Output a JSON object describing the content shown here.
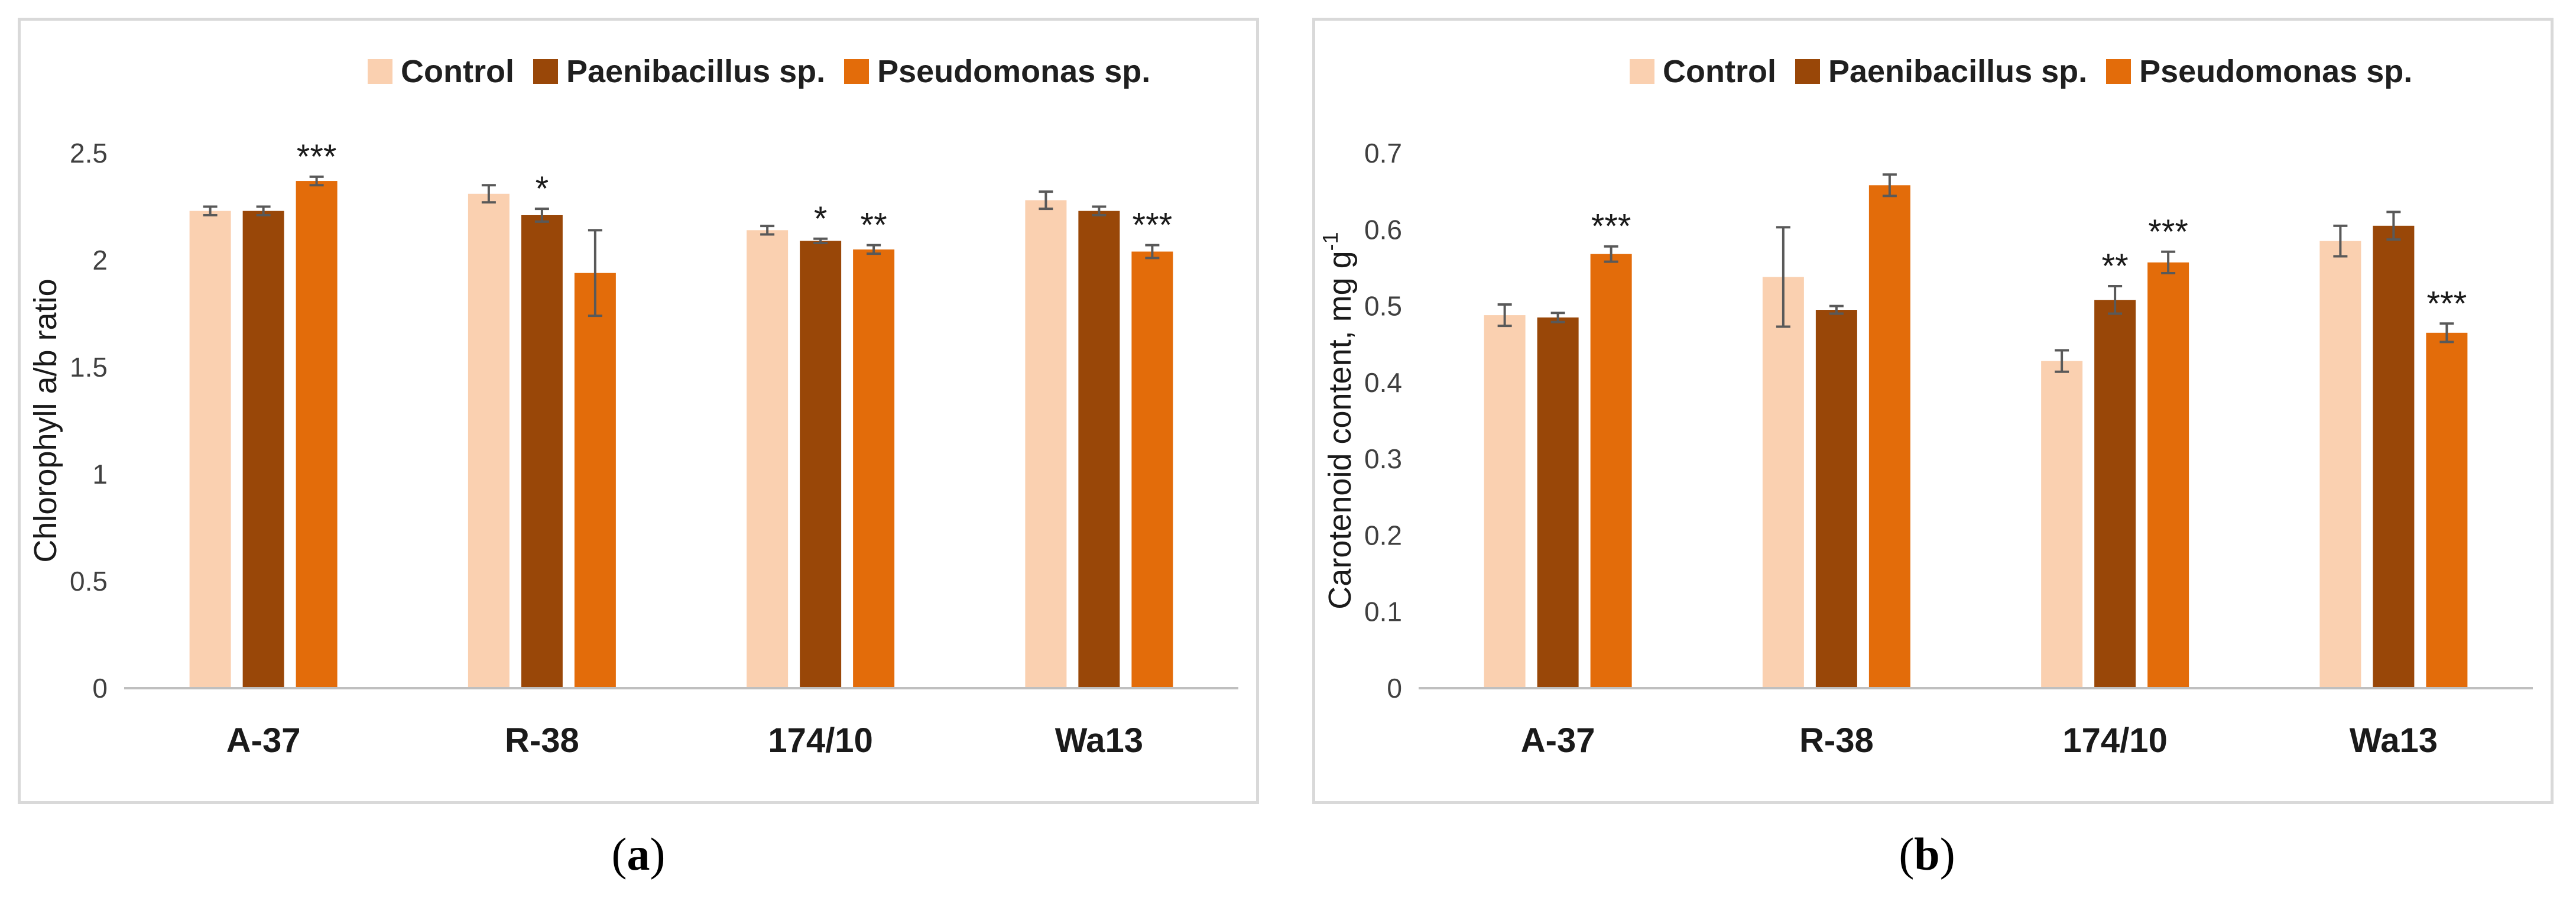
{
  "colors": {
    "control": "#fad0b0",
    "paenibacillus": "#994708",
    "pseudomonas": "#e36c0a",
    "axis": "#bfbfbf",
    "text": "#000000",
    "error": "#595959"
  },
  "chart_data": [
    {
      "type": "bar",
      "panel_label": "a",
      "categories": [
        "A-37",
        "R-38",
        "174/10",
        "Wa13"
      ],
      "series": [
        {
          "name": "Control",
          "values": [
            2.23,
            2.31,
            2.14,
            2.28
          ],
          "errors": [
            0.02,
            0.04,
            0.02,
            0.04
          ],
          "sig": [
            "",
            "",
            "",
            ""
          ]
        },
        {
          "name": "Paenibacillus sp.",
          "values": [
            2.23,
            2.21,
            2.09,
            2.23
          ],
          "errors": [
            0.02,
            0.03,
            0.01,
            0.02
          ],
          "sig": [
            "",
            "*",
            "*",
            ""
          ]
        },
        {
          "name": "Pseudomonas sp.",
          "values": [
            2.37,
            1.94,
            2.05,
            2.04
          ],
          "errors": [
            0.02,
            0.2,
            0.02,
            0.03
          ],
          "sig": [
            "***",
            "",
            "**",
            "***"
          ]
        }
      ],
      "title": "",
      "xlabel": "",
      "ylabel": "Chlorophyll a/b ratio",
      "ylim": [
        0,
        2.5
      ],
      "yticks": [
        "0",
        "0.5",
        "1",
        "1.5",
        "2",
        "2.5"
      ],
      "grid": false,
      "legend_position": "top"
    },
    {
      "type": "bar",
      "panel_label": "b",
      "categories": [
        "A-37",
        "R-38",
        "174/10",
        "Wa13"
      ],
      "series": [
        {
          "name": "Control",
          "values": [
            0.488,
            0.538,
            0.428,
            0.585
          ],
          "errors": [
            0.014,
            0.065,
            0.014,
            0.02
          ],
          "sig": [
            "",
            "",
            "",
            ""
          ]
        },
        {
          "name": "Paenibacillus sp.",
          "values": [
            0.485,
            0.495,
            0.508,
            0.605
          ],
          "errors": [
            0.006,
            0.005,
            0.018,
            0.018
          ],
          "sig": [
            "",
            "",
            "**",
            ""
          ]
        },
        {
          "name": "Pseudomonas sp.",
          "values": [
            0.568,
            0.658,
            0.557,
            0.465
          ],
          "errors": [
            0.01,
            0.014,
            0.014,
            0.012
          ],
          "sig": [
            "***",
            "",
            "***",
            "***"
          ]
        }
      ],
      "title": "",
      "xlabel": "",
      "ylabel": "Carotenoid content, mg g",
      "ylabel_sup": "-1",
      "ylim": [
        0,
        0.7
      ],
      "yticks": [
        "0",
        "0.1",
        "0.2",
        "0.3",
        "0.4",
        "0.5",
        "0.6",
        "0.7"
      ],
      "grid": false,
      "legend_position": "top"
    }
  ]
}
